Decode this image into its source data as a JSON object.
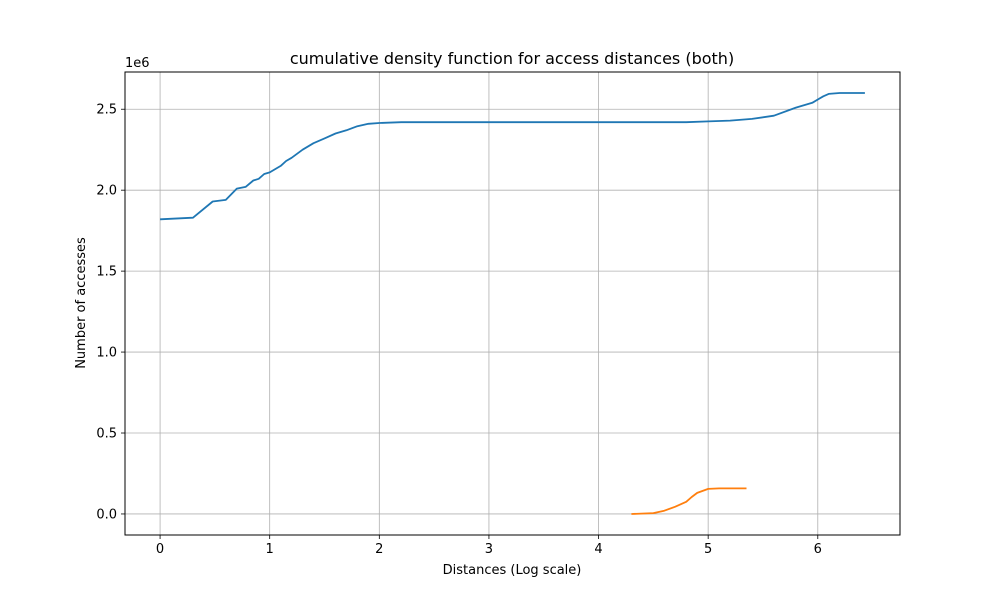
{
  "chart_data": {
    "type": "line",
    "title": "cumulative density function for access distances (both)",
    "xlabel": "Distances (Log scale)",
    "ylabel": "Number of accesses",
    "y_offset_label": "1e6",
    "xlim": [
      -0.32,
      6.75
    ],
    "ylim": [
      -0.13,
      2.73
    ],
    "xticks": [
      0,
      1,
      2,
      3,
      4,
      5,
      6
    ],
    "yticks": [
      0.0,
      0.5,
      1.0,
      1.5,
      2.0,
      2.5
    ],
    "xtick_labels": [
      "0",
      "1",
      "2",
      "3",
      "4",
      "5",
      "6"
    ],
    "ytick_labels": [
      "0.0",
      "0.5",
      "1.0",
      "1.5",
      "2.0",
      "2.5"
    ],
    "grid": true,
    "legend": false,
    "series": [
      {
        "color": "#1f77b4",
        "x": [
          0,
          0.3,
          0.48,
          0.6,
          0.7,
          0.78,
          0.85,
          0.9,
          0.95,
          1.0,
          1.05,
          1.1,
          1.15,
          1.2,
          1.3,
          1.4,
          1.5,
          1.6,
          1.7,
          1.8,
          1.9,
          2.0,
          2.2,
          3.0,
          4.0,
          4.8,
          5.0,
          5.2,
          5.4,
          5.6,
          5.8,
          5.95,
          6.0,
          6.05,
          6.1,
          6.2,
          6.43
        ],
        "y": [
          1.82,
          1.83,
          1.93,
          1.94,
          2.01,
          2.02,
          2.06,
          2.07,
          2.1,
          2.11,
          2.13,
          2.15,
          2.18,
          2.2,
          2.25,
          2.29,
          2.32,
          2.35,
          2.37,
          2.395,
          2.41,
          2.415,
          2.42,
          2.42,
          2.42,
          2.42,
          2.425,
          2.43,
          2.44,
          2.46,
          2.51,
          2.54,
          2.56,
          2.58,
          2.595,
          2.6,
          2.6
        ]
      },
      {
        "color": "#ff7f0e",
        "x": [
          4.3,
          4.5,
          4.6,
          4.7,
          4.8,
          4.85,
          4.9,
          5.0,
          5.1,
          5.2,
          5.35
        ],
        "y": [
          0.0,
          0.005,
          0.02,
          0.045,
          0.075,
          0.105,
          0.13,
          0.155,
          0.158,
          0.158,
          0.158
        ]
      }
    ]
  }
}
